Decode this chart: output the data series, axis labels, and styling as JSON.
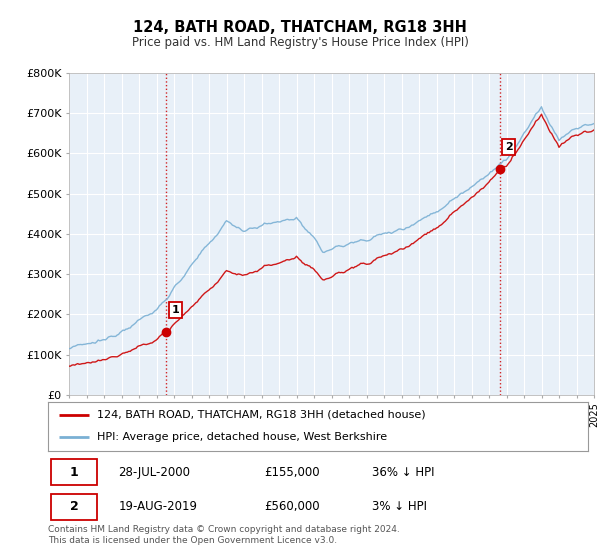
{
  "title": "124, BATH ROAD, THATCHAM, RG18 3HH",
  "subtitle": "Price paid vs. HM Land Registry's House Price Index (HPI)",
  "ylim": [
    0,
    800000
  ],
  "yticks": [
    0,
    100000,
    200000,
    300000,
    400000,
    500000,
    600000,
    700000,
    800000
  ],
  "ytick_labels": [
    "£0",
    "£100K",
    "£200K",
    "£300K",
    "£400K",
    "£500K",
    "£600K",
    "£700K",
    "£800K"
  ],
  "property_color": "#cc0000",
  "hpi_color": "#7ab0d4",
  "vline_color": "#cc0000",
  "sale1_year": 2000.57,
  "sale1_price": 155000,
  "sale1_label": "1",
  "sale2_year": 2019.63,
  "sale2_price": 560000,
  "sale2_label": "2",
  "legend_property": "124, BATH ROAD, THATCHAM, RG18 3HH (detached house)",
  "legend_hpi": "HPI: Average price, detached house, West Berkshire",
  "footnote": "Contains HM Land Registry data © Crown copyright and database right 2024.\nThis data is licensed under the Open Government Licence v3.0.",
  "background_color": "#ffffff",
  "chart_bg_color": "#e8f0f8",
  "grid_color": "#ffffff"
}
